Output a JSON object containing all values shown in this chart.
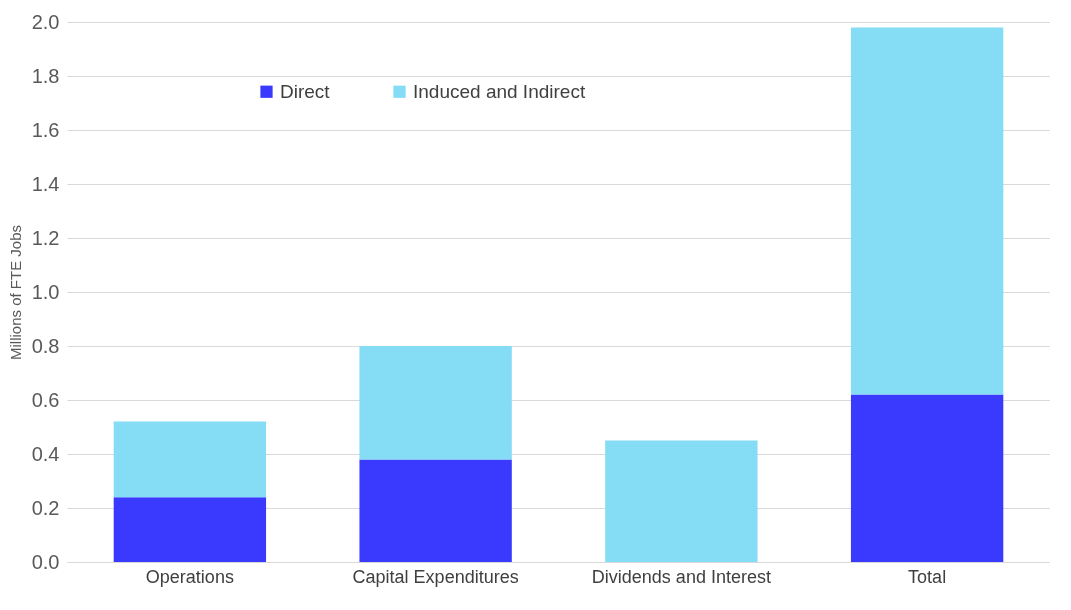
{
  "chart_data": {
    "type": "bar",
    "stacked": true,
    "ylabel": "Millions of FTE Jobs",
    "categories": [
      "Operations",
      "Capital Expenditures",
      "Dividends and Interest",
      "Total"
    ],
    "series": [
      {
        "name": "Direct",
        "color": "#3a3aff",
        "values": [
          0.24,
          0.38,
          0,
          0.62
        ]
      },
      {
        "name": "Induced and Indirect",
        "color": "#84dcf5",
        "values": [
          0.28,
          0.42,
          0.45,
          1.36
        ]
      }
    ],
    "ylim": [
      0,
      2.0
    ],
    "yticks": [
      {
        "value": 0,
        "label": "0.0"
      },
      0.2,
      0.4,
      0.6,
      0.8,
      {
        "value": 1,
        "label": "1.0"
      },
      1.2,
      1.4,
      1.6,
      1.8,
      {
        "value": 2,
        "label": "2.0"
      }
    ],
    "grid": "y",
    "legend": "top left"
  }
}
